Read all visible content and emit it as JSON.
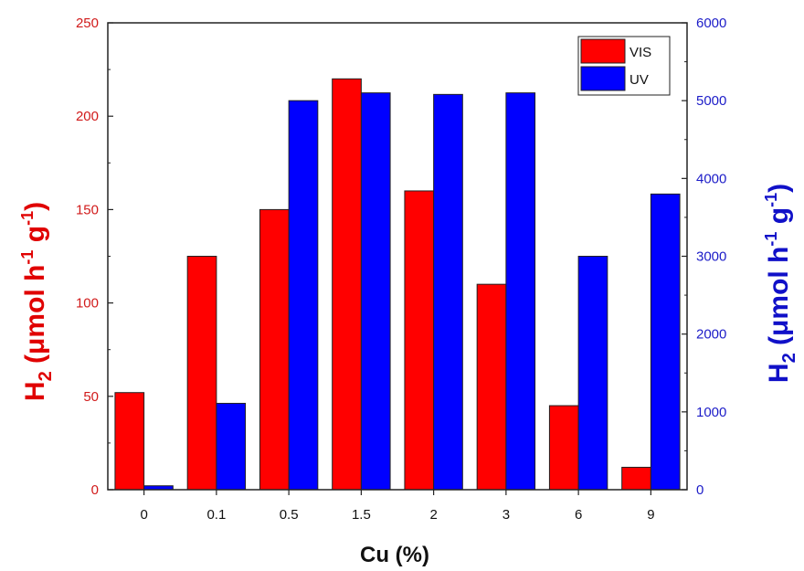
{
  "chart_data": {
    "type": "bar",
    "categories": [
      "0",
      "0.1",
      "0.5",
      "1.5",
      "2",
      "3",
      "6",
      "9"
    ],
    "series": [
      {
        "name": "VIS",
        "axis": "left",
        "color": "#ff0000",
        "values": [
          52,
          125,
          150,
          220,
          160,
          110,
          45,
          12
        ]
      },
      {
        "name": "UV",
        "axis": "right",
        "color": "#0000ff",
        "values": [
          50,
          1110,
          5000,
          5100,
          5080,
          5100,
          3000,
          3800
        ]
      }
    ],
    "xlabel": "Cu (%)",
    "ylabel_left": {
      "base": "H",
      "sub": "2",
      "unit_pre": " (",
      "mu": "μ",
      "unit_mid": "mol h",
      "sup1": "-1",
      "unit_mid2": " g",
      "sup2": "-1",
      "close": ")"
    },
    "ylabel_right": {
      "base": "H",
      "sub": "2",
      "unit_pre": " (",
      "mu": "μ",
      "unit_mid": "mol h",
      "sup1": "-1",
      "unit_mid2": " g",
      "sup2": "-1",
      "close": ")"
    },
    "ylim_left": [
      0,
      250
    ],
    "ylim_right": [
      0,
      6000
    ],
    "yticks_left": [
      0,
      50,
      100,
      150,
      200,
      250
    ],
    "yticks_right": [
      0,
      1000,
      2000,
      3000,
      4000,
      5000,
      6000
    ],
    "left_axis_color": "#d11a1a",
    "right_axis_color": "#1c1cc8",
    "legend_position": "top-right",
    "grid": false
  }
}
